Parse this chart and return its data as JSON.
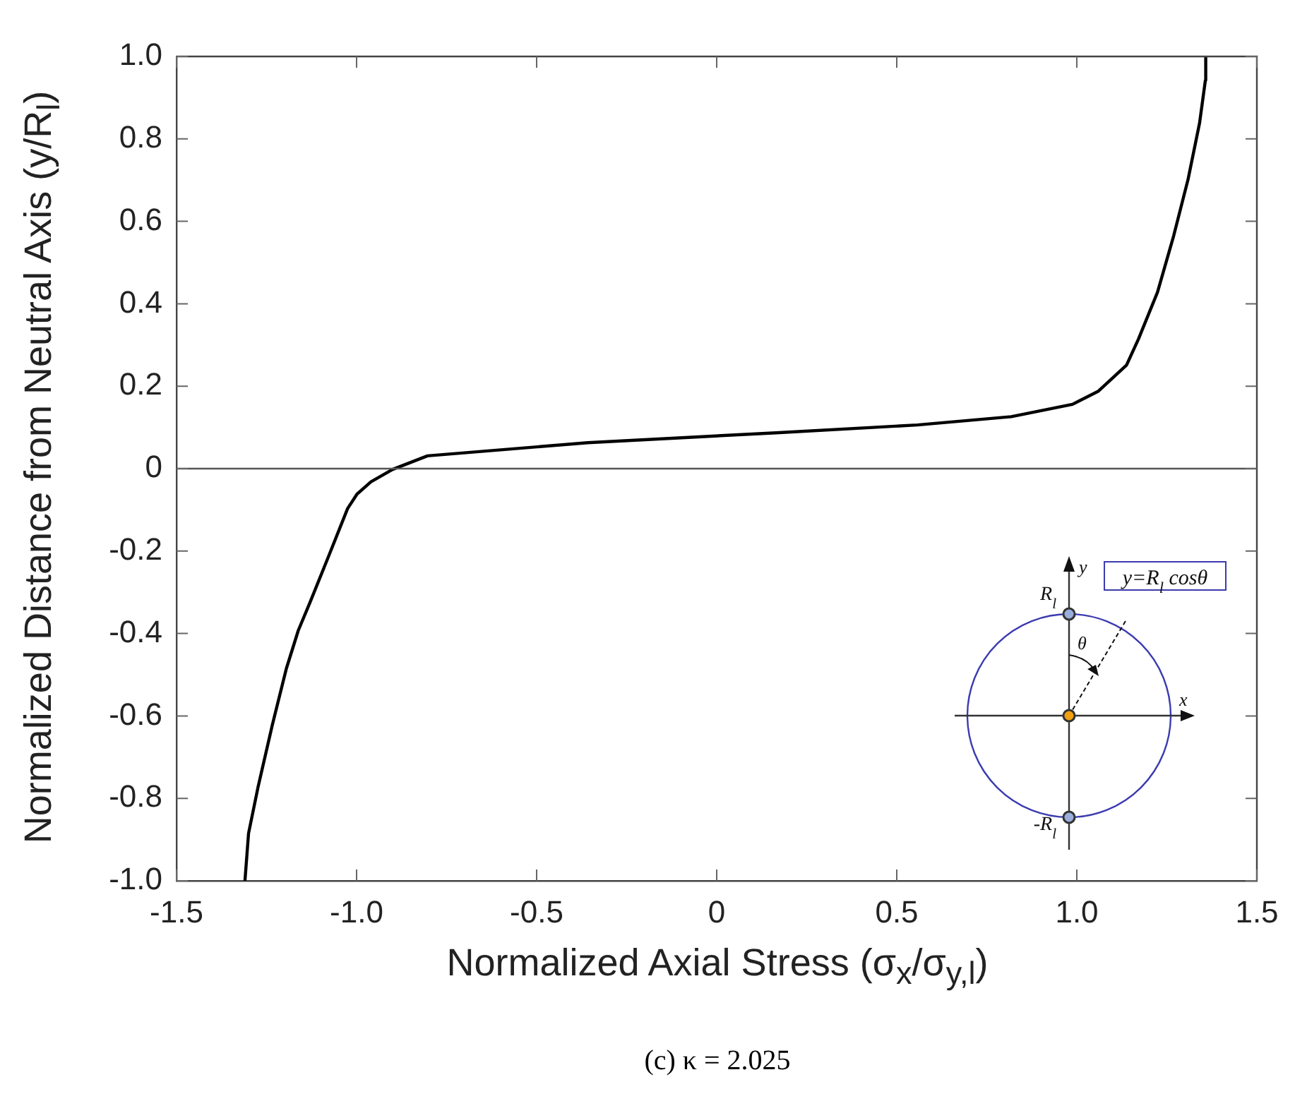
{
  "chart_data": {
    "type": "line",
    "xlabel": "Normalized Axial Stress (σ$_{x}$/σ$_{y,l}$)",
    "ylabel": "Normalized Distance from Neutral Axis (y/R$_{l}$)",
    "xlim": [
      -1.5,
      1.5
    ],
    "xticks": [
      -1.5,
      {
        "value": -1,
        "label": "-1.0"
      },
      -0.5,
      0,
      0.5,
      {
        "value": 1,
        "label": "1.0"
      },
      1.5
    ],
    "ylim": [
      -1,
      1
    ],
    "yticks": [
      {
        "value": -1,
        "label": "-1.0"
      },
      -0.8,
      -0.6,
      -0.4,
      -0.2,
      0,
      0.2,
      0.4,
      0.6,
      0.8,
      {
        "value": 1,
        "label": "1.0"
      }
    ],
    "series": [
      {
        "color": "#000000",
        "x": [
          -1.31,
          -1.3,
          -1.273,
          -1.234,
          -1.195,
          -1.162,
          -1.129,
          -1.077,
          -1.025,
          -0.999,
          -0.96,
          -0.9,
          -0.803,
          -0.358,
          0.165,
          0.557,
          0.818,
          0.988,
          1.06,
          1.138,
          1.171,
          1.224,
          1.269,
          1.309,
          1.341,
          1.357,
          1.358
        ],
        "values": [
          -1.0,
          -0.885,
          -0.77,
          -0.622,
          -0.485,
          -0.393,
          -0.324,
          -0.211,
          -0.097,
          -0.062,
          -0.032,
          -0.002,
          0.031,
          0.063,
          0.087,
          0.106,
          0.126,
          0.156,
          0.188,
          0.251,
          0.314,
          0.428,
          0.565,
          0.702,
          0.839,
          0.942,
          1.0
        ]
      }
    ],
    "ref_lines": [
      {
        "axis": "y",
        "value": 0,
        "color": "#555555"
      }
    ],
    "marker": "none",
    "line_style": "solid",
    "grid": false,
    "legend": false,
    "annotations": [
      "y",
      "x",
      "R$_{l}$",
      "-R$_{l}$",
      "θ",
      "y=R$_{l}$ cosθ",
      "(c) κ = 2.025"
    ]
  }
}
